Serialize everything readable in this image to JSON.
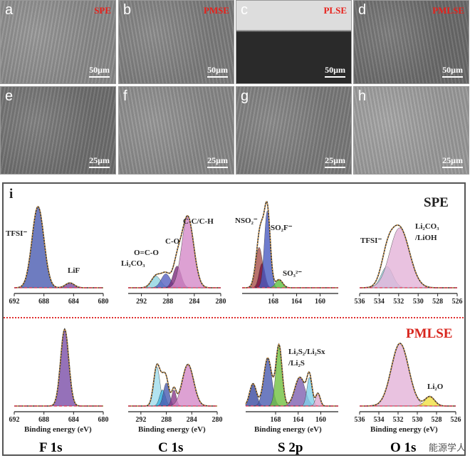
{
  "sem": [
    {
      "letter": "a",
      "tag": "SPE",
      "scale": "50µm",
      "tone": "#8a8a8a"
    },
    {
      "letter": "b",
      "tag": "PMSE",
      "scale": "50µm",
      "tone": "#7c7c7c"
    },
    {
      "letter": "c",
      "tag": "PLSE",
      "scale": "50µm",
      "tone": "#3a3a3a"
    },
    {
      "letter": "d",
      "tag": "PMLSE",
      "scale": "50µm",
      "tone": "#6a6a6a"
    },
    {
      "letter": "e",
      "tag": "",
      "scale": "25µm",
      "tone": "#6e6e6e"
    },
    {
      "letter": "f",
      "tag": "",
      "scale": "25µm",
      "tone": "#888"
    },
    {
      "letter": "g",
      "tag": "",
      "scale": "25µm",
      "tone": "#7a7a7a"
    },
    {
      "letter": "h",
      "tag": "",
      "scale": "25µm",
      "tone": "#9a9a9a"
    }
  ],
  "panel": {
    "letter": "i",
    "spe_label": "SPE",
    "pmlse_label": "PMLSE",
    "xlabel": "Binding energy (eV)",
    "core_levels": [
      "F 1s",
      "C 1s",
      "S 2p",
      "O 1s"
    ],
    "watermark": "能源学人"
  },
  "annotations": {
    "tfsi_f": "TFSI⁻",
    "lif": "LiF",
    "li2co3_c": "Li₂CO₃",
    "ococ": "O=C-O",
    "co": "C-O",
    "cc": "C-C/C-H",
    "nso2": "NSO₂⁻",
    "so2f": "SO₂F⁻",
    "so3": "SO₃²⁻",
    "tfsi_o": "TFSI⁻",
    "li2co3_o": "Li₂CO₃",
    "lioh": "/LiOH",
    "li2s2": "Li₂S₂/Li₂Sx",
    "li2s": "/Li₂S",
    "li2o": "Li₂O"
  },
  "chart_data": [
    {
      "type": "area",
      "name": "SPE F1s",
      "xlim": [
        692,
        680
      ],
      "ticks": [
        692,
        688,
        684,
        680
      ],
      "peaks": [
        {
          "c": 688.8,
          "h": 1,
          "w": 0.8,
          "color": "#4a5bb0"
        },
        {
          "c": 684.5,
          "h": 0.06,
          "w": 0.6,
          "color": "#7a4aa0"
        }
      ]
    },
    {
      "type": "area",
      "name": "SPE C1s",
      "xlim": [
        294,
        280
      ],
      "ticks": [
        292,
        288,
        284,
        280
      ],
      "peaks": [
        {
          "c": 289.8,
          "h": 0.15,
          "w": 0.7,
          "color": "#8fd3e0"
        },
        {
          "c": 288.3,
          "h": 0.18,
          "w": 0.7,
          "color": "#5560c0"
        },
        {
          "c": 286.6,
          "h": 0.28,
          "w": 0.6,
          "color": "#7a2a7a"
        },
        {
          "c": 285,
          "h": 0.92,
          "w": 0.9,
          "color": "#d58ac8"
        }
      ]
    },
    {
      "type": "area",
      "name": "SPE S2p",
      "xlim": [
        173.3,
        156.9
      ],
      "ticks": [
        168,
        164,
        160
      ],
      "peaks": [
        {
          "c": 170.4,
          "h": 0.5,
          "w": 0.6,
          "color": "#a8504a"
        },
        {
          "c": 169.9,
          "h": 0.3,
          "w": 0.5,
          "color": "#7a1040"
        },
        {
          "c": 169,
          "h": 0.95,
          "w": 0.5,
          "color": "#4a5bc0"
        },
        {
          "c": 167,
          "h": 0.1,
          "w": 0.6,
          "color": "#5cc040"
        }
      ]
    },
    {
      "type": "area",
      "name": "SPE O1s",
      "xlim": [
        536,
        526
      ],
      "ticks": [
        536,
        534,
        532,
        530,
        528,
        526
      ],
      "peaks": [
        {
          "c": 533.2,
          "h": 0.3,
          "w": 0.6,
          "color": "#9ad8e6"
        },
        {
          "c": 531.9,
          "h": 0.85,
          "w": 1.0,
          "color": "#e3b3d8"
        }
      ]
    },
    {
      "type": "area",
      "name": "PMLSE F1s",
      "xlim": [
        692,
        680
      ],
      "ticks": [
        692,
        688,
        684,
        680
      ],
      "peaks": [
        {
          "c": 685.2,
          "h": 1,
          "w": 0.55,
          "color": "#7b4ea8"
        }
      ]
    },
    {
      "type": "area",
      "name": "PMLSE C1s",
      "xlim": [
        294,
        280
      ],
      "ticks": [
        292,
        288,
        284,
        280
      ],
      "peaks": [
        {
          "c": 289.5,
          "h": 0.85,
          "w": 0.5,
          "color": "#9fdcec"
        },
        {
          "c": 288.6,
          "h": 0.35,
          "w": 0.45,
          "color": "#3ab0e0"
        },
        {
          "c": 288,
          "h": 0.5,
          "w": 0.45,
          "color": "#4a5bb0"
        },
        {
          "c": 286.8,
          "h": 0.35,
          "w": 0.35,
          "color": "#8a3a8a"
        },
        {
          "c": 284.6,
          "h": 0.9,
          "w": 0.9,
          "color": "#d58ac8"
        }
      ]
    },
    {
      "type": "area",
      "name": "PMLSE S2p",
      "xlim": [
        173.3,
        156.9
      ],
      "ticks": [
        168,
        164,
        160
      ],
      "peaks": [
        {
          "c": 172,
          "h": 0.35,
          "w": 0.6,
          "color": "#3a4aa0"
        },
        {
          "c": 169.4,
          "h": 0.75,
          "w": 0.7,
          "color": "#4a5bb0"
        },
        {
          "c": 167.4,
          "h": 0.95,
          "w": 0.55,
          "color": "#70c040"
        },
        {
          "c": 163.7,
          "h": 0.45,
          "w": 0.9,
          "color": "#8060b0"
        },
        {
          "c": 162,
          "h": 0.45,
          "w": 0.45,
          "color": "#80d0e8"
        },
        {
          "c": 160.5,
          "h": 0.2,
          "w": 0.4,
          "color": "#e0a8d0"
        }
      ]
    },
    {
      "type": "area",
      "name": "PMLSE O1s",
      "xlim": [
        536,
        526
      ],
      "ticks": [
        536,
        534,
        532,
        530,
        528,
        526
      ],
      "peaks": [
        {
          "c": 531.8,
          "h": 1,
          "w": 0.9,
          "color": "#e3b3d8"
        },
        {
          "c": 528.7,
          "h": 0.15,
          "w": 0.5,
          "color": "#f0e040"
        }
      ]
    }
  ]
}
